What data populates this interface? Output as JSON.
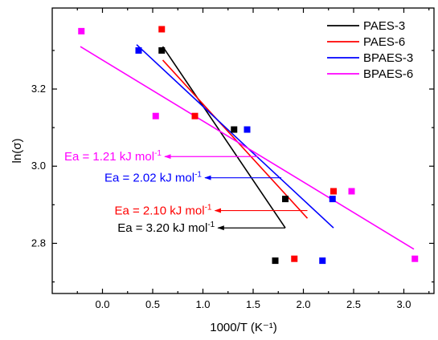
{
  "chart_data": {
    "type": "scatter",
    "xlabel": "1000/T (K⁻¹)",
    "ylabel": "ln(σ)",
    "xlim": [
      -0.5,
      3.3
    ],
    "ylim": [
      2.67,
      3.41
    ],
    "x_ticks": [
      "0.0",
      "0.5",
      "1.0",
      "1.5",
      "2.0",
      "2.5",
      "3.0"
    ],
    "x_tick_values": [
      0.0,
      0.5,
      1.0,
      1.5,
      2.0,
      2.5,
      3.0
    ],
    "y_ticks": [
      "2.8",
      "3.0",
      "3.2"
    ],
    "y_tick_values": [
      2.8,
      3.0,
      3.2
    ],
    "legend_position": "top-right",
    "series": [
      {
        "name": "PAES-3",
        "color": "#000000",
        "points": [
          [
            0.59,
            3.3
          ],
          [
            1.31,
            3.095
          ],
          [
            1.82,
            2.915
          ],
          [
            1.72,
            2.755
          ]
        ],
        "fit": [
          [
            0.6,
            3.31
          ],
          [
            1.82,
            2.84
          ]
        ],
        "annotation": {
          "label": "Ea = 3.20 kJ mol",
          "sup": "-1",
          "arrow_from": [
            1.82,
            2.84
          ],
          "arrow_to": [
            1.15,
            2.84
          ]
        }
      },
      {
        "name": "PAES-6",
        "color": "#ff0000",
        "points": [
          [
            0.59,
            3.355
          ],
          [
            0.92,
            3.13
          ],
          [
            1.91,
            2.76
          ],
          [
            2.3,
            2.935
          ]
        ],
        "fit": [
          [
            0.6,
            3.275
          ],
          [
            2.04,
            2.865
          ]
        ],
        "annotation": {
          "label": "Ea = 2.10 kJ mol",
          "sup": "-1",
          "arrow_from": [
            2.04,
            2.885
          ],
          "arrow_to": [
            1.12,
            2.885
          ]
        }
      },
      {
        "name": "BPAES-3",
        "color": "#0000ff",
        "points": [
          [
            0.36,
            3.3
          ],
          [
            1.44,
            3.095
          ],
          [
            2.29,
            2.915
          ],
          [
            2.19,
            2.755
          ]
        ],
        "fit": [
          [
            0.34,
            3.315
          ],
          [
            2.3,
            2.84
          ]
        ],
        "annotation": {
          "label": "Ea = 2.02 kJ mol",
          "sup": "-1",
          "arrow_from": [
            1.78,
            2.97
          ],
          "arrow_to": [
            1.02,
            2.97
          ]
        }
      },
      {
        "name": "BPAES-6",
        "color": "#ff00ff",
        "points": [
          [
            -0.21,
            3.35
          ],
          [
            0.53,
            3.13
          ],
          [
            2.48,
            2.935
          ],
          [
            3.11,
            2.76
          ]
        ],
        "fit": [
          [
            -0.22,
            3.31
          ],
          [
            3.1,
            2.785
          ]
        ],
        "annotation": {
          "label": "Ea = 1.21 kJ mol",
          "sup": "-1",
          "arrow_from": [
            1.55,
            3.025
          ],
          "arrow_to": [
            0.62,
            3.025
          ]
        }
      }
    ]
  }
}
